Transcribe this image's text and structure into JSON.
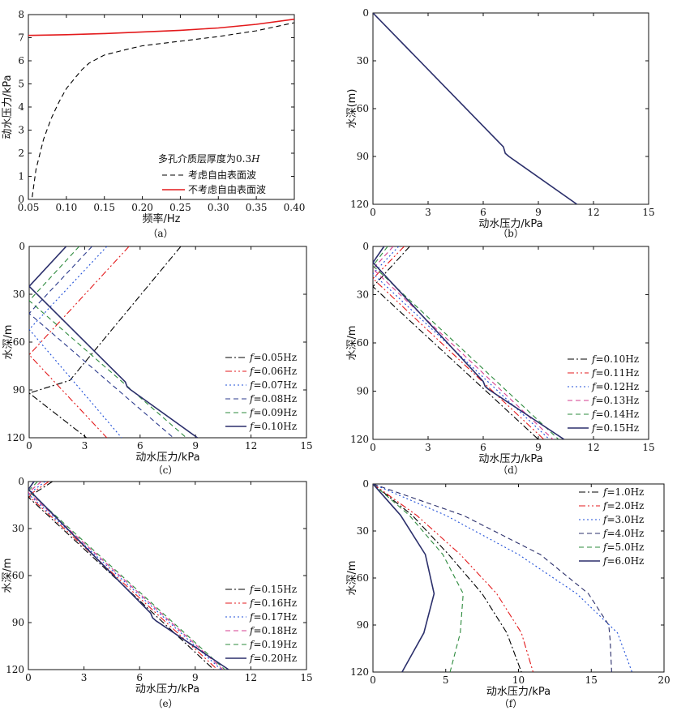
{
  "figure": {
    "captions": [
      "（a）",
      "（b）",
      "（c）",
      "（d）",
      "（e）",
      "（f）"
    ]
  },
  "chart_data": [
    {
      "id": "a",
      "type": "line",
      "caption": "（a）",
      "xlabel": "频率/Hz",
      "ylabel": "动水压力/kPa",
      "xlim": [
        0.05,
        0.4
      ],
      "ylim": [
        0,
        8
      ],
      "xticks": [
        "0.05",
        "0.10",
        "0.15",
        "0.20",
        "0.25",
        "0.30",
        "0.35",
        "0.40"
      ],
      "yticks": [
        "0",
        "1",
        "2",
        "3",
        "4",
        "5",
        "6",
        "7",
        "8"
      ],
      "annotation": "多孔介质层厚度为0.3H",
      "legend_position": "lower-right",
      "series": [
        {
          "name": "考虑自由表面波",
          "style": "dash",
          "color": "#000000",
          "x": [
            0.055,
            0.06,
            0.07,
            0.08,
            0.09,
            0.1,
            0.11,
            0.12,
            0.13,
            0.15,
            0.18,
            0.2,
            0.25,
            0.3,
            0.35,
            0.4
          ],
          "y": [
            0.1,
            1.3,
            2.6,
            3.5,
            4.2,
            4.8,
            5.2,
            5.6,
            5.9,
            6.25,
            6.5,
            6.65,
            6.85,
            7.05,
            7.3,
            7.65
          ]
        },
        {
          "name": "不考虑自由表面波",
          "style": "solid",
          "color": "#e31a1c",
          "x": [
            0.05,
            0.1,
            0.15,
            0.2,
            0.25,
            0.3,
            0.35,
            0.4
          ],
          "y": [
            7.1,
            7.13,
            7.18,
            7.25,
            7.32,
            7.42,
            7.58,
            7.8
          ]
        }
      ]
    },
    {
      "id": "b",
      "type": "line",
      "caption": "（b）",
      "xlabel": "动水压力/kPa",
      "ylabel": "水深(m)",
      "xlim": [
        0,
        15
      ],
      "ylim": [
        0,
        120
      ],
      "y_inverted": true,
      "xticks": [
        "0",
        "3",
        "6",
        "9",
        "12",
        "15"
      ],
      "yticks": [
        "0",
        "30",
        "60",
        "90",
        "120"
      ],
      "series": [
        {
          "name": "",
          "style": "solid",
          "color": "#2b2f6b",
          "x": [
            0,
            7.1,
            7.2,
            7.4,
            11.1
          ],
          "y": [
            0,
            84,
            88,
            90,
            120
          ]
        }
      ]
    },
    {
      "id": "c",
      "type": "line",
      "caption": "（c）",
      "xlabel": "动水压力/kPa",
      "ylabel": "水深/m",
      "xlim": [
        0,
        15
      ],
      "ylim": [
        0,
        120
      ],
      "y_inverted": true,
      "xticks": [
        "0",
        "3",
        "6",
        "9",
        "12",
        "15"
      ],
      "yticks": [
        "0",
        "30",
        "60",
        "90",
        "120"
      ],
      "legend_position": "lower-right",
      "series": [
        {
          "name": "f=0.05Hz",
          "style": "dashdot",
          "color": "#000000",
          "x": [
            8.2,
            2.2,
            0,
            3.1
          ],
          "y": [
            0,
            84,
            92,
            120
          ]
        },
        {
          "name": "f=0.06Hz",
          "style": "dashdotdot",
          "color": "#e31a1c",
          "x": [
            5.4,
            0,
            4.2
          ],
          "y": [
            0,
            68,
            120
          ]
        },
        {
          "name": "f=0.07Hz",
          "style": "dot",
          "color": "#1f4fd8",
          "x": [
            4.2,
            0,
            5.0
          ],
          "y": [
            0,
            52,
            120
          ]
        },
        {
          "name": "f=0.08Hz",
          "style": "dash",
          "color": "#2b3a8c",
          "x": [
            3.4,
            0,
            7.8
          ],
          "y": [
            0,
            42,
            120
          ]
        },
        {
          "name": "f=0.09Hz",
          "style": "dash",
          "color": "#2e8b3e",
          "x": [
            2.7,
            0,
            8.5
          ],
          "y": [
            0,
            34,
            120
          ]
        },
        {
          "name": "f=0.10Hz",
          "style": "solid",
          "color": "#2b2f6b",
          "x": [
            2.0,
            0,
            5.2,
            5.3,
            5.5,
            9.1
          ],
          "y": [
            0,
            25,
            85,
            88,
            90,
            120
          ]
        }
      ]
    },
    {
      "id": "d",
      "type": "line",
      "caption": "（d）",
      "xlabel": "动水压力/kPa",
      "ylabel": "水深/m",
      "xlim": [
        0,
        15
      ],
      "ylim": [
        0,
        120
      ],
      "y_inverted": true,
      "xticks": [
        "0",
        "3",
        "6",
        "9",
        "12",
        "15"
      ],
      "yticks": [
        "0",
        "30",
        "60",
        "90",
        "120"
      ],
      "legend_position": "lower-right",
      "series": [
        {
          "name": "f=0.10Hz",
          "style": "dashdot",
          "color": "#000000",
          "x": [
            2.0,
            0,
            9.0
          ],
          "y": [
            0,
            25,
            120
          ]
        },
        {
          "name": "f=0.11Hz",
          "style": "dashdotdot",
          "color": "#e31a1c",
          "x": [
            1.7,
            0,
            9.3
          ],
          "y": [
            0,
            20,
            120
          ]
        },
        {
          "name": "f=0.12Hz",
          "style": "dot",
          "color": "#1f4fd8",
          "x": [
            1.4,
            0,
            9.6
          ],
          "y": [
            0,
            17,
            120
          ]
        },
        {
          "name": "f=0.13Hz",
          "style": "dash",
          "color": "#d63c8f",
          "x": [
            1.1,
            0,
            9.8
          ],
          "y": [
            0,
            14,
            120
          ]
        },
        {
          "name": "f=0.14Hz",
          "style": "dash",
          "color": "#2e8b3e",
          "x": [
            0.8,
            0,
            10.1
          ],
          "y": [
            0,
            12,
            120
          ]
        },
        {
          "name": "f=0.15Hz",
          "style": "solid",
          "color": "#2b2f6b",
          "x": [
            0.6,
            0,
            6.0,
            6.1,
            6.3,
            10.4
          ],
          "y": [
            0,
            10,
            84,
            87,
            89,
            120
          ]
        }
      ]
    },
    {
      "id": "e",
      "type": "line",
      "caption": "（e）",
      "xlabel": "动水压力/kPa",
      "ylabel": "水深/m",
      "xlim": [
        0,
        15
      ],
      "ylim": [
        0,
        120
      ],
      "y_inverted": true,
      "xticks": [
        "0",
        "3",
        "6",
        "9",
        "12",
        "15"
      ],
      "yticks": [
        "0",
        "30",
        "60",
        "90",
        "120"
      ],
      "legend_position": "lower-right",
      "series": [
        {
          "name": "f=0.15Hz",
          "style": "dashdot",
          "color": "#000000",
          "x": [
            1.3,
            0,
            10.0
          ],
          "y": [
            0,
            10,
            120
          ]
        },
        {
          "name": "f=0.16Hz",
          "style": "dashdotdot",
          "color": "#e31a1c",
          "x": [
            1.1,
            0,
            10.2
          ],
          "y": [
            0,
            9,
            120
          ]
        },
        {
          "name": "f=0.17Hz",
          "style": "dot",
          "color": "#1f4fd8",
          "x": [
            0.9,
            0,
            10.4
          ],
          "y": [
            0,
            8,
            120
          ]
        },
        {
          "name": "f=0.18Hz",
          "style": "dash",
          "color": "#d63c8f",
          "x": [
            0.7,
            0,
            10.5
          ],
          "y": [
            0,
            7,
            120
          ]
        },
        {
          "name": "f=0.19Hz",
          "style": "dash",
          "color": "#2e8b3e",
          "x": [
            0.5,
            0,
            10.6
          ],
          "y": [
            0,
            6,
            120
          ]
        },
        {
          "name": "f=0.20Hz",
          "style": "solid",
          "color": "#2b2f6b",
          "x": [
            0.3,
            0,
            6.6,
            6.7,
            6.9,
            10.8
          ],
          "y": [
            0,
            5,
            84,
            87,
            89,
            120
          ]
        }
      ]
    },
    {
      "id": "f",
      "type": "line",
      "caption": "（f）",
      "xlabel": "动水压力/kPa",
      "ylabel": "水深/m",
      "xlim": [
        0,
        20
      ],
      "ylim": [
        0,
        120
      ],
      "y_inverted": true,
      "xticks": [
        "0",
        "5",
        "10",
        "15",
        "20"
      ],
      "yticks": [
        "0",
        "30",
        "60",
        "90",
        "120"
      ],
      "legend_position": "upper-right",
      "series": [
        {
          "name": "f=1.0Hz",
          "style": "dashdot",
          "color": "#000000",
          "x": [
            0,
            2.7,
            5.2,
            7.5,
            9.2,
            10.2
          ],
          "y": [
            0,
            20,
            45,
            70,
            95,
            120
          ]
        },
        {
          "name": "f=2.0Hz",
          "style": "dashdotdot",
          "color": "#e31a1c",
          "x": [
            0,
            3.0,
            6.0,
            8.5,
            10.2,
            11.0
          ],
          "y": [
            0,
            20,
            45,
            70,
            95,
            120
          ]
        },
        {
          "name": "f=3.0Hz",
          "style": "dot",
          "color": "#1f4fd8",
          "x": [
            0,
            5.0,
            10.0,
            14.0,
            16.8,
            17.8
          ],
          "y": [
            0,
            20,
            45,
            70,
            95,
            120
          ]
        },
        {
          "name": "f=4.0Hz",
          "style": "dash",
          "color": "#2b2f6b",
          "x": [
            0,
            6.2,
            11.5,
            14.8,
            16.2,
            16.3,
            16.4
          ],
          "y": [
            0,
            20,
            45,
            70,
            90,
            100,
            120
          ]
        },
        {
          "name": "f=5.0Hz",
          "style": "dash",
          "color": "#2e8b3e",
          "x": [
            0,
            2.5,
            4.8,
            6.2,
            6.0,
            5.3
          ],
          "y": [
            0,
            20,
            45,
            70,
            95,
            120
          ]
        },
        {
          "name": "f=6.0Hz",
          "style": "solid",
          "color": "#2b2f6b",
          "x": [
            0,
            1.9,
            3.6,
            4.2,
            3.5,
            2.0
          ],
          "y": [
            0,
            20,
            45,
            70,
            95,
            120
          ]
        }
      ]
    }
  ]
}
